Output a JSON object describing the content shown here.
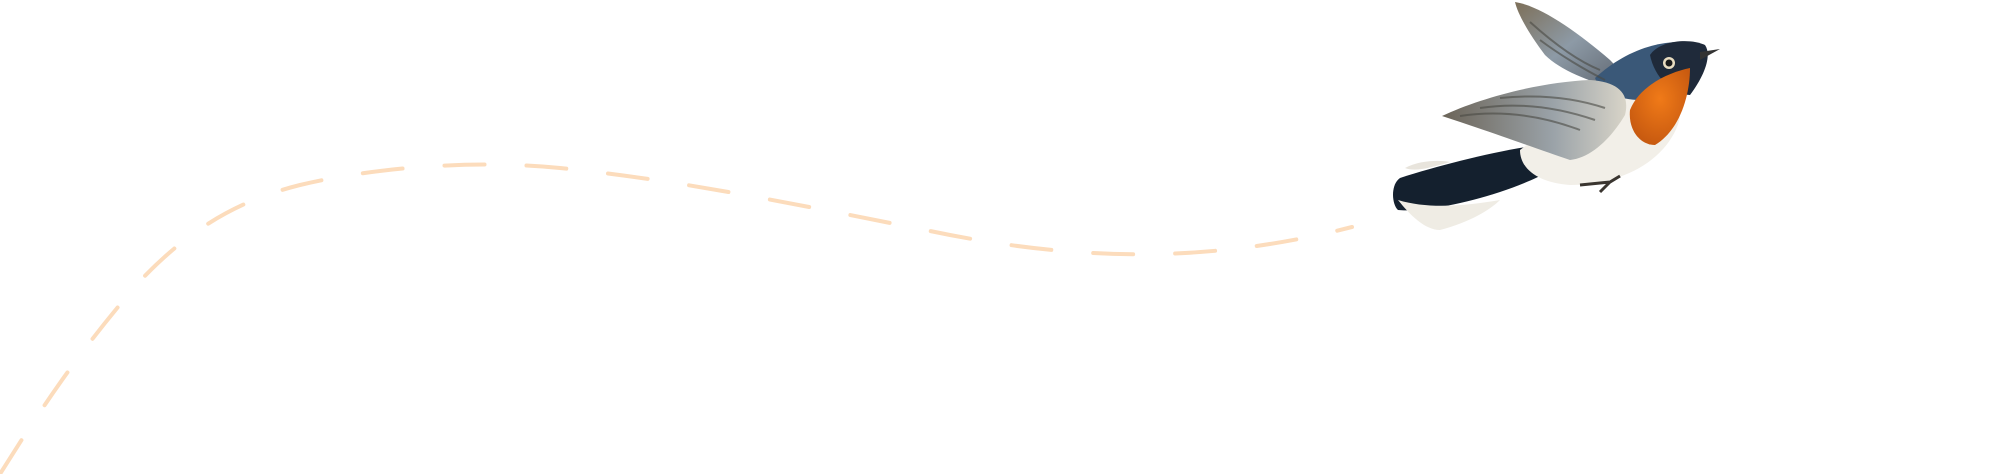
{
  "illustration": {
    "subject": "bird-in-flight",
    "colors": {
      "flight_path": "#fcdcbc",
      "throat": "#e4701a",
      "head": "#1f2a3a",
      "back": "#3a5878",
      "wing": "#8a8a80",
      "belly": "#f2efe8",
      "tail": "#14202e"
    }
  }
}
